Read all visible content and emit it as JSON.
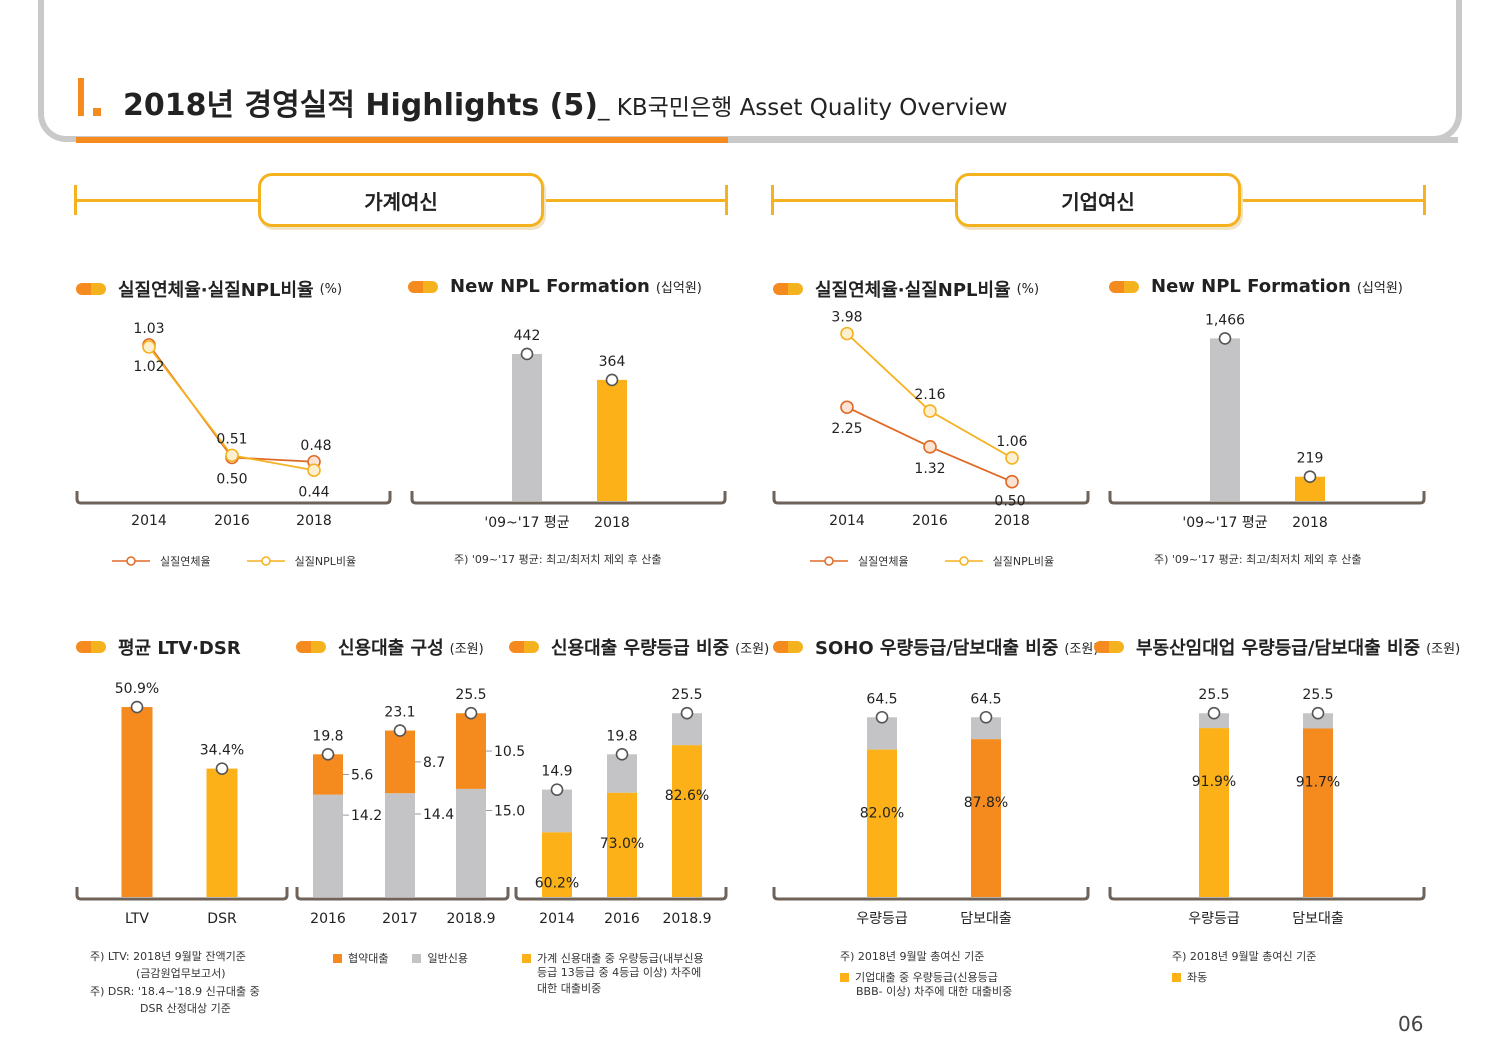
{
  "header": {
    "title": "2018년 경영실적 Highlights (5)",
    "subtitle": "_ KB국민은행 Asset Quality Overview"
  },
  "sections": {
    "household": "가계여신",
    "corporate": "기업여신"
  },
  "page_number": "06",
  "colors": {
    "orange": "#f58a1f",
    "yellow": "#fbb117",
    "gray": "#c4c4c6",
    "axis": "#6e6259"
  },
  "chart_data": [
    {
      "id": "hh_delinq",
      "type": "line",
      "title": "실질연체율·실질NPL비율",
      "unit": "(%)",
      "categories": [
        "2014",
        "2016",
        "2018"
      ],
      "series": [
        {
          "name": "실질연체율",
          "values": [
            1.03,
            0.5,
            0.48
          ],
          "labels": [
            "1.03",
            "0.50",
            "0.48"
          ],
          "color": "#e06a25"
        },
        {
          "name": "실질NPL비율",
          "values": [
            1.02,
            0.51,
            0.44
          ],
          "labels": [
            "1.02",
            "0.51",
            "0.44"
          ],
          "color": "#f5b21f"
        }
      ],
      "ylim": [
        0.3,
        1.1
      ]
    },
    {
      "id": "hh_npl",
      "type": "bar",
      "title": "New NPL Formation",
      "unit": "(십억원)",
      "categories": [
        "'09~'17 평균",
        "2018"
      ],
      "values": [
        442,
        364
      ],
      "labels": [
        "442",
        "364"
      ],
      "note": "주) '09~'17 평균: 최고/최저치 제외 후 산출",
      "ylim": [
        0,
        520
      ]
    },
    {
      "id": "corp_delinq",
      "type": "line",
      "title": "실질연체율·실질NPL비율",
      "unit": "(%)",
      "categories": [
        "2014",
        "2016",
        "2018"
      ],
      "series": [
        {
          "name": "실질연체율",
          "values": [
            2.25,
            1.32,
            0.5
          ],
          "labels": [
            "2.25",
            "1.32",
            "0.50"
          ],
          "color": "#e06a25"
        },
        {
          "name": "실질NPL비율",
          "values": [
            3.98,
            2.16,
            1.06
          ],
          "labels": [
            "3.98",
            "2.16",
            "1.06"
          ],
          "color": "#f5b21f"
        }
      ],
      "ylim": [
        0,
        4.3
      ]
    },
    {
      "id": "corp_npl",
      "type": "bar",
      "title": "New NPL Formation",
      "unit": "(십억원)",
      "categories": [
        "'09~'17 평균",
        "2018"
      ],
      "values": [
        1466,
        219
      ],
      "labels": [
        "1,466",
        "219"
      ],
      "note": "주) '09~'17 평균: 최고/최저치 제외 후 산출",
      "ylim": [
        0,
        1650
      ]
    },
    {
      "id": "ltv_dsr",
      "type": "bar",
      "title": "평균 LTV·DSR",
      "unit": "",
      "categories": [
        "LTV",
        "DSR"
      ],
      "values": [
        50.9,
        34.4
      ],
      "labels": [
        "50.9%",
        "34.4%"
      ],
      "notes": [
        "주) LTV: 2018년 9월말 잔액기준",
        "(금감원업무보고서)",
        "주) DSR: '18.4~'18.9 신규대출 중",
        "DSR 산정대상 기준"
      ],
      "ylim": [
        0,
        56
      ]
    },
    {
      "id": "credit_comp",
      "type": "bar",
      "stacked": true,
      "title": "신용대출 구성",
      "unit": "(조원)",
      "categories": [
        "2016",
        "2017",
        "2018.9"
      ],
      "totals": [
        "19.8",
        "23.1",
        "25.5"
      ],
      "series": [
        {
          "name": "협약대출",
          "values": [
            5.6,
            8.7,
            10.5
          ],
          "labels": [
            "5.6",
            "8.7",
            "10.5"
          ],
          "color": "#f58a1f"
        },
        {
          "name": "일반신용",
          "values": [
            14.2,
            14.4,
            15.0
          ],
          "labels": [
            "14.2",
            "14.4",
            "15.0"
          ],
          "color": "#c4c4c6"
        }
      ],
      "ylim": [
        0,
        29
      ]
    },
    {
      "id": "credit_grade",
      "type": "bar",
      "stacked": true,
      "title": "신용대출 우량등급 비중",
      "unit": "(조원)",
      "categories": [
        "2014",
        "2016",
        "2018.9"
      ],
      "totals": [
        14.9,
        19.8,
        25.5
      ],
      "total_labels": [
        "14.9",
        "19.8",
        "25.5"
      ],
      "share": [
        60.2,
        73.0,
        82.6
      ],
      "share_labels": [
        "60.2%",
        "73.0%",
        "82.6%"
      ],
      "legend": "가계 신용대출 중 우량등급(내부신용 등급 13등급 중 4등급 이상) 차주에 대한 대출비중",
      "legend_lines": [
        "가계 신용대출 중 우량등급(내부신용",
        "등급 13등급 중 4등급 이상) 차주에",
        "대한 대출비중"
      ],
      "ylim": [
        0,
        29
      ]
    },
    {
      "id": "soho",
      "type": "bar",
      "stacked": true,
      "title": "SOHO 우량등급/담보대출 비중",
      "unit": "(조원)",
      "categories": [
        "우량등급",
        "담보대출"
      ],
      "totals": [
        64.5,
        64.5
      ],
      "total_labels": [
        "64.5",
        "64.5"
      ],
      "share": [
        82.0,
        87.8
      ],
      "share_labels": [
        "82.0%",
        "87.8%"
      ],
      "notes": [
        "주) 2018년 9월말 총여신 기준"
      ],
      "legend_lines": [
        "기업대출 중 우량등급(신용등급",
        "BBB- 이상) 차주에 대한 대출비중"
      ],
      "ylim": [
        0,
        75
      ]
    },
    {
      "id": "realestate",
      "type": "bar",
      "stacked": true,
      "title": "부동산임대업 우량등급/담보대출 비중",
      "unit": "(조원)",
      "categories": [
        "우량등급",
        "담보대출"
      ],
      "totals": [
        25.5,
        25.5
      ],
      "total_labels": [
        "25.5",
        "25.5"
      ],
      "share": [
        91.9,
        91.7
      ],
      "share_labels": [
        "91.9%",
        "91.7%"
      ],
      "notes": [
        "주) 2018년 9월말 총여신 기준"
      ],
      "legend_lines": [
        "좌동"
      ],
      "ylim": [
        0,
        29
      ]
    }
  ]
}
